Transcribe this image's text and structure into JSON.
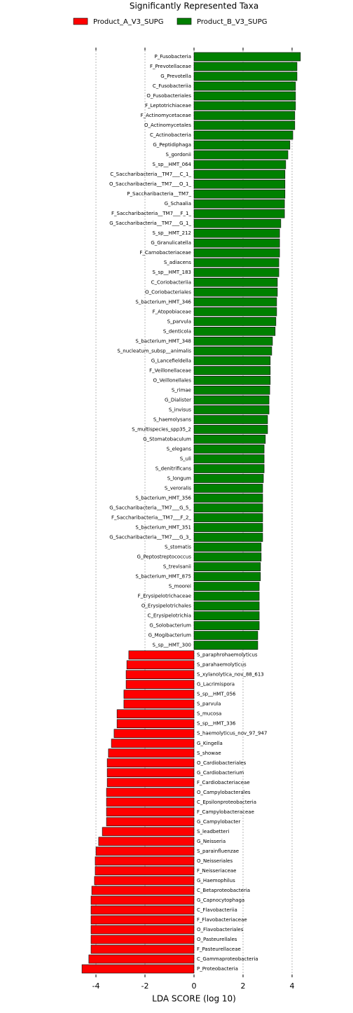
{
  "chart_data": {
    "type": "hbar",
    "title": "Significantly Represented Taxa",
    "x_label": "LDA SCORE (log 10)",
    "categories": [
      "P_Fusobacteria",
      "F_Prevotellaceae",
      "G_Prevotella",
      "C_Fusobacteriia",
      "O_Fusobacteriales",
      "F_Leptotrichiaceae",
      "F_Actinomycetaceae",
      "O_Actinomycetales",
      "C_Actinobacteria",
      "G_Peptidiphaga",
      "S_gordonii",
      "S_sp__HMT_064",
      "C_Saccharibacteria__TM7___C_1_",
      "O_Saccharibacteria__TM7___O_1_",
      "P_Saccharibacteria__TM7_",
      "G_Schaalia",
      "F_Saccharibacteria__TM7___F_1_",
      "G_Saccharibacteria__TM7___G_1_",
      "S_sp__HMT_212",
      "G_Granulicatella",
      "F_Carnobacteriaceae",
      "S_adiacens",
      "S_sp__HMT_183",
      "C_Coriobacteriia",
      "O_Coriobacteriales",
      "S_bacterium_HMT_346",
      "F_Atopobiaceae",
      "S_parvula",
      "S_denticola",
      "S_bacterium_HMT_348",
      "S_nucleatum_subsp__animalis",
      "G_Lancefieldella",
      "F_Veillonellaceae",
      "O_Veillonellales",
      "S_rimae",
      "G_Dialister",
      "S_invisus",
      "S_haemolysans",
      "S_multispecies_spp35_2",
      "G_Stomatobaculum",
      "S_elegans",
      "S_uli",
      "S_denitrificans",
      "S_longum",
      "S_veroralis",
      "S_bacterium_HMT_356",
      "G_Saccharibacteria__TM7___G_5_",
      "F_Saccharibacteria__TM7___F_2_",
      "S_bacterium_HMT_351",
      "G_Saccharibacteria__TM7___G_3_",
      "S_stomatis",
      "G_Peptostreptococcus",
      "S_trevisanii",
      "S_bacterium_HMT_875",
      "S_moorei",
      "F_Erysipelotrichaceae",
      "O_Erysipelotrichales",
      "C_Erysipelotrichia",
      "G_Solobacterium",
      "G_Mogibacterium",
      "S_sp__HMT_300",
      "S_paraphrohaemolyticus",
      "S_parahaemolyticus",
      "S_xylanolytica_nov_88_613",
      "G_Lacrimispora",
      "S_sp__HMT_056",
      "S_parvula",
      "S_mucosa",
      "S_sp__HMT_336",
      "S_haemolyticus_nov_97_947",
      "G_Kingella",
      "S_showae",
      "O_Cardiobacteriales",
      "G_Cardiobacterium",
      "F_Cardiobacteriaceae",
      "O_Campylobacterales",
      "C_Epsilonproteobacteria",
      "F_Campylobacteraceae",
      "G_Campylobacter",
      "S_leadbetteri",
      "G_Neisseria",
      "S_parainfluenzae",
      "O_Neisseriales",
      "F_Neisseriaceae",
      "G_Haemophilus",
      "C_Betaproteobacteria",
      "G_Capnocytophaga",
      "C_Flavobacteriia",
      "F_Flavobacteriaceae",
      "O_Flavobacteriales",
      "O_Pasteurellales",
      "F_Pasteurellaceae",
      "C_Gammaproteobacteria",
      "P_Proteobacteria"
    ],
    "series": [
      {
        "name": "Product_A_V3_SUPG",
        "color": "#ff0000",
        "values": [
          null,
          null,
          null,
          null,
          null,
          null,
          null,
          null,
          null,
          null,
          null,
          null,
          null,
          null,
          null,
          null,
          null,
          null,
          null,
          null,
          null,
          null,
          null,
          null,
          null,
          null,
          null,
          null,
          null,
          null,
          null,
          null,
          null,
          null,
          null,
          null,
          null,
          null,
          null,
          null,
          null,
          null,
          null,
          null,
          null,
          null,
          null,
          null,
          null,
          null,
          null,
          null,
          null,
          null,
          null,
          null,
          null,
          null,
          null,
          null,
          null,
          -2.66,
          -2.74,
          -2.77,
          -2.77,
          -2.86,
          -2.86,
          -3.14,
          -3.14,
          -3.26,
          -3.37,
          -3.49,
          -3.54,
          -3.54,
          -3.54,
          -3.57,
          -3.57,
          -3.57,
          -3.57,
          -3.74,
          -3.89,
          -4.0,
          -4.03,
          -4.03,
          -4.06,
          -4.17,
          -4.2,
          -4.2,
          -4.2,
          -4.2,
          -4.2,
          -4.2,
          -4.29,
          -4.57
        ]
      },
      {
        "name": "Product_B_V3_SUPG",
        "color": "#008000",
        "values": [
          4.34,
          4.2,
          4.2,
          4.14,
          4.14,
          4.14,
          4.11,
          4.11,
          4.03,
          3.91,
          3.83,
          3.74,
          3.71,
          3.71,
          3.71,
          3.69,
          3.69,
          3.54,
          3.49,
          3.49,
          3.49,
          3.46,
          3.46,
          3.4,
          3.4,
          3.37,
          3.37,
          3.34,
          3.31,
          3.2,
          3.17,
          3.11,
          3.11,
          3.11,
          3.09,
          3.06,
          3.06,
          3.0,
          3.0,
          2.91,
          2.86,
          2.86,
          2.86,
          2.83,
          2.8,
          2.8,
          2.8,
          2.8,
          2.8,
          2.8,
          2.74,
          2.74,
          2.71,
          2.71,
          2.66,
          2.66,
          2.66,
          2.66,
          2.66,
          2.6,
          2.6,
          null,
          null,
          null,
          null,
          null,
          null,
          null,
          null,
          null,
          null,
          null,
          null,
          null,
          null,
          null,
          null,
          null,
          null,
          null,
          null,
          null,
          null,
          null,
          null,
          null,
          null,
          null,
          null,
          null,
          null,
          null,
          null,
          null
        ]
      }
    ],
    "xlim": [
      -4.6,
      4.4
    ],
    "xticks": [
      -4,
      -2,
      0,
      2,
      4
    ],
    "grid": true
  }
}
